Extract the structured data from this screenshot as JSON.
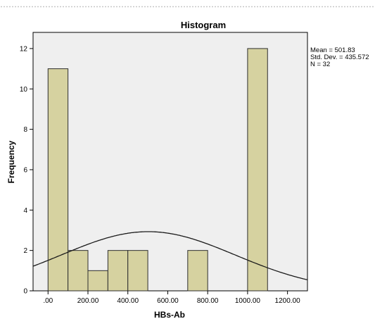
{
  "chart_data": {
    "type": "bar",
    "title": "Histogram",
    "xlabel": "HBs-Ab",
    "ylabel": "Frequency",
    "bins": [
      {
        "start": 0,
        "end": 100,
        "value": 11
      },
      {
        "start": 100,
        "end": 200,
        "value": 2
      },
      {
        "start": 200,
        "end": 300,
        "value": 1
      },
      {
        "start": 300,
        "end": 400,
        "value": 2
      },
      {
        "start": 400,
        "end": 500,
        "value": 2
      },
      {
        "start": 500,
        "end": 600,
        "value": 0
      },
      {
        "start": 600,
        "end": 700,
        "value": 0
      },
      {
        "start": 700,
        "end": 800,
        "value": 2
      },
      {
        "start": 800,
        "end": 900,
        "value": 0
      },
      {
        "start": 900,
        "end": 1000,
        "value": 0
      },
      {
        "start": 1000,
        "end": 1100,
        "value": 12
      }
    ],
    "xlim": [
      -75,
      1300
    ],
    "ylim": [
      0,
      12.8
    ],
    "xticks": [
      0,
      200,
      400,
      600,
      800,
      1000,
      1200
    ],
    "xtick_labels": [
      ".00",
      "200.00",
      "400.00",
      "600.00",
      "800.00",
      "1000.00",
      "1200.00"
    ],
    "yticks": [
      0,
      2,
      4,
      6,
      8,
      10,
      12
    ],
    "ytick_labels": [
      "0",
      "2",
      "4",
      "6",
      "8",
      "10",
      "12"
    ],
    "normal_curve": {
      "mean": 501.83,
      "std_dev": 435.572,
      "n": 32,
      "bin_width": 100
    },
    "stats_labels": [
      "Mean = 501.83",
      "Std. Dev. = 435.572",
      "N = 32"
    ],
    "grid": false,
    "legend": "none",
    "colors": {
      "bar_fill": "#d6d2a0",
      "bar_stroke": "#2e2e2e",
      "plot_background": "#efefef",
      "curve": "#1a1a1a"
    }
  }
}
